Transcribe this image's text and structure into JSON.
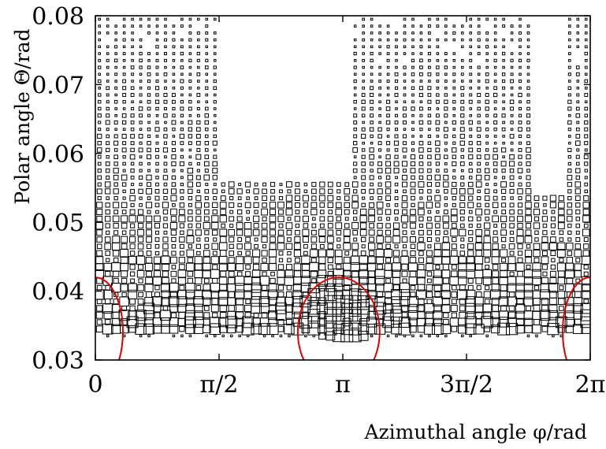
{
  "chart_data": {
    "type": "heatmap",
    "subtype": "box-plot (square size proportional to counts)",
    "xlabel": "Azimuthal angle φ/rad",
    "ylabel": "Polar angle Θ/rad",
    "xlim": [
      0,
      6.2832
    ],
    "ylim": [
      0.03,
      0.08
    ],
    "x_ticks": [
      {
        "value": 0,
        "label": "0"
      },
      {
        "value": 1.5708,
        "label": "π/2"
      },
      {
        "value": 3.1416,
        "label": "π"
      },
      {
        "value": 4.7124,
        "label": "3π/2"
      },
      {
        "value": 6.2832,
        "label": "2π"
      }
    ],
    "y_ticks": [
      {
        "value": 0.03,
        "label": "0.03"
      },
      {
        "value": 0.04,
        "label": "0.04"
      },
      {
        "value": 0.05,
        "label": "0.05"
      },
      {
        "value": 0.06,
        "label": "0.06"
      },
      {
        "value": 0.07,
        "label": "0.07"
      },
      {
        "value": 0.08,
        "label": "0.08"
      }
    ],
    "grid": false,
    "bins": {
      "phi_count": 60,
      "theta_min": 0.0335,
      "theta_max": 0.0795,
      "theta_count": 47
    },
    "density_model": "box size grows toward low polar angle and peaks near φ=π; sparse/empty region for φ≈π/2–1.0π and 1.7π–1.9π above Θ≈0.055",
    "overlay_curves": [
      {
        "shape": "ellipse-arc",
        "color": "#e00000",
        "center": [
          3.09,
          0.0341
        ],
        "radius_x": 0.52,
        "radius_y": 0.0079
      },
      {
        "shape": "ellipse-arc",
        "color": "#e00000",
        "center": [
          0.0,
          0.0341
        ],
        "radius_x": 0.35,
        "radius_y": 0.0079
      },
      {
        "shape": "ellipse-arc",
        "color": "#e00000",
        "center": [
          6.2832,
          0.0341
        ],
        "radius_x": 0.35,
        "radius_y": 0.0079
      }
    ]
  }
}
